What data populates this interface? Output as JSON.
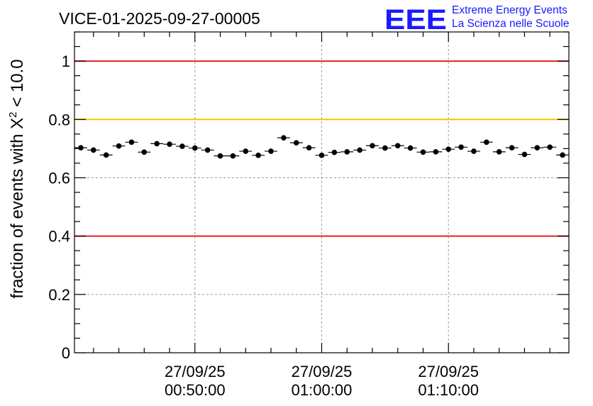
{
  "chart_data": {
    "type": "scatter",
    "title": "VICE-01-2025-09-27-00005",
    "ylabel_prefix": "fraction of events with ",
    "ylabel_symbol": "X",
    "ylabel_sup": "2",
    "ylabel_suffix": " < 10.0",
    "xlabel": "",
    "x_unit": "minutes after 27/09/25 00:00:00",
    "xlim": [
      40.5,
      79.5
    ],
    "ylim": [
      0,
      1.1
    ],
    "yticks": [
      0,
      0.2,
      0.4,
      0.6,
      0.8,
      1
    ],
    "ytick_labels": [
      "0",
      "0.2",
      "0.4",
      "0.6",
      "0.8",
      "1"
    ],
    "xticks": [
      {
        "x": 50,
        "date": "27/09/25",
        "time": "00:50:00"
      },
      {
        "x": 60,
        "date": "27/09/25",
        "time": "01:00:00"
      },
      {
        "x": 70,
        "date": "27/09/25",
        "time": "01:10:00"
      }
    ],
    "grid": true,
    "reference_lines": [
      {
        "y": 1.0,
        "color": "#e8201e"
      },
      {
        "y": 0.8,
        "color": "#f5c400"
      },
      {
        "y": 0.4,
        "color": "#e8201e"
      }
    ],
    "series": [
      {
        "name": "fraction",
        "color": "#000000",
        "x": [
          41,
          42,
          43,
          44,
          45,
          46,
          47,
          48,
          49,
          50,
          51,
          52,
          53,
          54,
          55,
          56,
          57,
          58,
          59,
          60,
          61,
          62,
          63,
          64,
          65,
          66,
          67,
          68,
          69,
          70,
          71,
          72,
          73,
          74,
          75,
          76,
          77,
          78,
          79
        ],
        "values": [
          0.703,
          0.695,
          0.678,
          0.709,
          0.722,
          0.688,
          0.717,
          0.715,
          0.708,
          0.702,
          0.695,
          0.675,
          0.675,
          0.691,
          0.677,
          0.691,
          0.737,
          0.72,
          0.703,
          0.677,
          0.687,
          0.689,
          0.695,
          0.71,
          0.702,
          0.71,
          0.702,
          0.688,
          0.689,
          0.698,
          0.705,
          0.691,
          0.722,
          0.689,
          0.703,
          0.68,
          0.703,
          0.705,
          0.678
        ],
        "x_error": 0.5,
        "y_error": 0.009
      }
    ]
  },
  "logo": {
    "mark": "EEE",
    "line1": "Extreme Energy Events",
    "line2": "La Scienza nelle Scuole",
    "color": "#1a1aff"
  }
}
